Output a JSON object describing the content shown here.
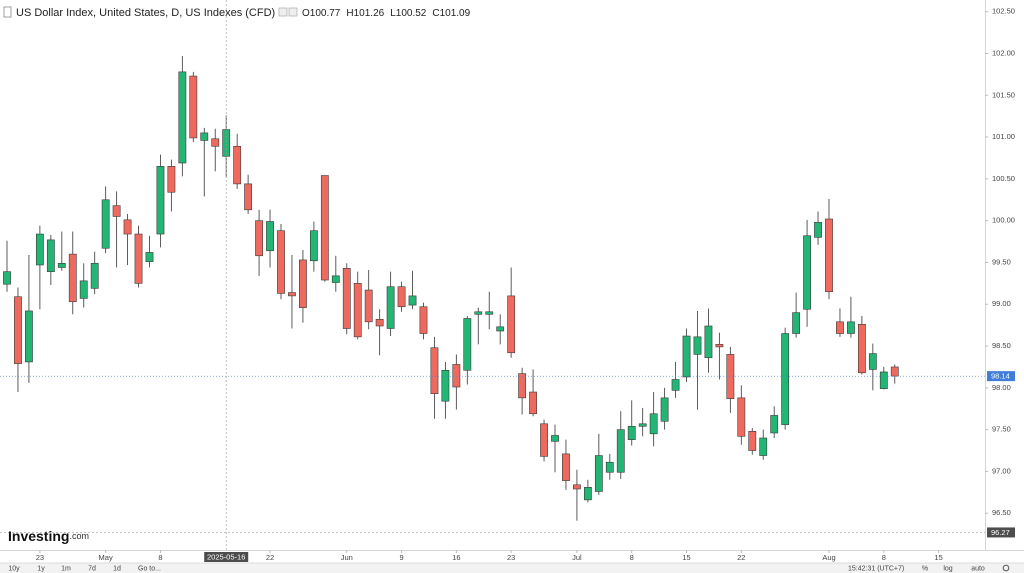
{
  "chart_data": {
    "type": "candlestick",
    "title": "US Dollar Index, United States, D, US Indexes (CFD)",
    "ohlc_labels": [
      "O",
      "H",
      "L",
      "C"
    ],
    "x": [
      "2025-04-18",
      "2025-04-21",
      "2025-04-22",
      "2025-04-23",
      "2025-04-24",
      "2025-04-25",
      "2025-04-28",
      "2025-04-29",
      "2025-04-30",
      "2025-05-01",
      "2025-05-02",
      "2025-05-05",
      "2025-05-06",
      "2025-05-07",
      "2025-05-08",
      "2025-05-09",
      "2025-05-12",
      "2025-05-13",
      "2025-05-14",
      "2025-05-15",
      "2025-05-16",
      "2025-05-19",
      "2025-05-20",
      "2025-05-21",
      "2025-05-22",
      "2025-05-23",
      "2025-05-26",
      "2025-05-27",
      "2025-05-28",
      "2025-05-29",
      "2025-05-30",
      "2025-06-02",
      "2025-06-03",
      "2025-06-04",
      "2025-06-05",
      "2025-06-06",
      "2025-06-09",
      "2025-06-10",
      "2025-06-11",
      "2025-06-12",
      "2025-06-13",
      "2025-06-16",
      "2025-06-17",
      "2025-06-18",
      "2025-06-19",
      "2025-06-20",
      "2025-06-23",
      "2025-06-24",
      "2025-06-25",
      "2025-06-26",
      "2025-06-27",
      "2025-06-30",
      "2025-07-01",
      "2025-07-02",
      "2025-07-03",
      "2025-07-04",
      "2025-07-07",
      "2025-07-08",
      "2025-07-09",
      "2025-07-10",
      "2025-07-11",
      "2025-07-14",
      "2025-07-15",
      "2025-07-16",
      "2025-07-17",
      "2025-07-18",
      "2025-07-21",
      "2025-07-22",
      "2025-07-23",
      "2025-07-24",
      "2025-07-25",
      "2025-07-28",
      "2025-07-29",
      "2025-07-30",
      "2025-07-31",
      "2025-08-01",
      "2025-08-04",
      "2025-08-05",
      "2025-08-06",
      "2025-08-07",
      "2025-08-08",
      "2025-08-11"
    ],
    "open": [
      99.24,
      99.09,
      98.31,
      99.47,
      99.39,
      99.44,
      99.6,
      99.07,
      99.19,
      99.67,
      100.18,
      100.01,
      99.84,
      99.51,
      99.84,
      100.65,
      100.69,
      101.73,
      100.96,
      100.98,
      100.77,
      100.89,
      100.44,
      100.0,
      99.64,
      99.88,
      99.14,
      99.53,
      99.52,
      100.54,
      99.26,
      99.43,
      99.25,
      99.17,
      98.82,
      98.71,
      99.21,
      98.99,
      98.97,
      98.48,
      97.84,
      98.28,
      98.21,
      98.88,
      98.88,
      98.68,
      99.1,
      98.17,
      97.95,
      97.57,
      97.36,
      97.21,
      96.84,
      96.66,
      96.76,
      96.99,
      96.99,
      97.38,
      97.54,
      97.45,
      97.6,
      97.97,
      98.13,
      98.4,
      98.36,
      98.52,
      98.4,
      97.88,
      97.48,
      97.19,
      97.46,
      97.56,
      98.65,
      98.94,
      99.8,
      100.02,
      98.79,
      98.65,
      98.76,
      98.22,
      97.99,
      98.25
    ],
    "high": [
      99.76,
      99.2,
      99.59,
      99.94,
      99.83,
      99.87,
      99.87,
      99.49,
      99.63,
      100.41,
      100.35,
      100.08,
      99.94,
      99.82,
      100.79,
      100.73,
      101.97,
      101.78,
      101.11,
      101.1,
      101.26,
      101.04,
      100.55,
      100.13,
      100.13,
      99.96,
      99.59,
      99.65,
      99.99,
      100.54,
      99.58,
      99.49,
      99.39,
      99.41,
      98.94,
      99.39,
      99.27,
      99.4,
      99.02,
      98.61,
      98.31,
      98.4,
      98.86,
      98.96,
      99.15,
      98.88,
      99.44,
      98.24,
      98.22,
      97.62,
      97.56,
      97.38,
      97.02,
      96.9,
      97.45,
      97.21,
      97.72,
      97.85,
      97.76,
      97.95,
      98.0,
      98.31,
      98.71,
      98.92,
      98.95,
      98.66,
      98.49,
      98.03,
      97.52,
      97.5,
      97.78,
      98.72,
      99.14,
      100.01,
      100.11,
      100.26,
      98.95,
      99.09,
      98.86,
      98.53,
      98.25,
      98.28
    ],
    "low": [
      99.15,
      97.95,
      98.06,
      98.94,
      99.23,
      99.4,
      98.88,
      98.96,
      99.12,
      99.61,
      99.44,
      99.47,
      99.2,
      99.44,
      99.68,
      100.11,
      100.53,
      100.94,
      100.29,
      100.59,
      100.52,
      100.38,
      100.08,
      99.34,
      99.44,
      99.06,
      98.71,
      98.78,
      99.39,
      99.27,
      99.15,
      98.64,
      98.58,
      98.7,
      98.39,
      98.62,
      98.91,
      98.94,
      98.58,
      97.63,
      97.63,
      97.74,
      98.04,
      98.52,
      98.7,
      98.52,
      98.36,
      97.68,
      97.66,
      97.12,
      96.99,
      96.78,
      96.41,
      96.63,
      96.72,
      96.9,
      96.91,
      97.31,
      97.42,
      97.3,
      97.5,
      97.88,
      98.07,
      97.74,
      98.18,
      98.1,
      97.7,
      97.32,
      97.2,
      97.14,
      97.4,
      97.5,
      98.6,
      98.73,
      99.71,
      99.06,
      98.61,
      98.6,
      98.16,
      97.97,
      97.98,
      98.05
    ],
    "close": [
      99.39,
      98.29,
      98.92,
      99.84,
      99.77,
      99.49,
      99.03,
      99.28,
      99.49,
      100.25,
      100.05,
      99.84,
      99.25,
      99.62,
      100.65,
      100.34,
      101.78,
      100.99,
      101.05,
      100.89,
      101.09,
      100.44,
      100.13,
      99.58,
      99.99,
      99.13,
      99.1,
      98.96,
      99.88,
      99.29,
      99.34,
      98.71,
      98.61,
      98.79,
      98.74,
      99.21,
      98.97,
      99.1,
      98.65,
      97.93,
      98.21,
      98.01,
      98.83,
      98.91,
      98.91,
      98.73,
      98.42,
      97.88,
      97.69,
      97.18,
      97.43,
      96.89,
      96.79,
      96.81,
      97.19,
      97.11,
      97.5,
      97.54,
      97.57,
      97.69,
      97.88,
      98.1,
      98.62,
      98.61,
      98.74,
      98.49,
      97.87,
      97.42,
      97.25,
      97.4,
      97.67,
      98.65,
      98.9,
      99.82,
      99.98,
      99.15,
      98.65,
      98.79,
      98.18,
      98.41,
      98.19,
      98.14
    ],
    "up_color": "#22b573",
    "down_color": "#ef6a5e",
    "last_price_color": "#3f7fd9",
    "header_index": 20,
    "ylim": [
      96.06,
      102.64
    ],
    "yticks": [
      {
        "value": 96.5,
        "label": "96.50"
      },
      {
        "value": 97,
        "label": "97.00"
      },
      {
        "value": 97.5,
        "label": "97.50"
      },
      {
        "value": 98,
        "label": "98.00"
      },
      {
        "value": 98.5,
        "label": "98.50"
      },
      {
        "value": 99,
        "label": "99.00"
      },
      {
        "value": 99.5,
        "label": "99.50"
      },
      {
        "value": 100,
        "label": "100.00"
      },
      {
        "value": 100.5,
        "label": "100.50"
      },
      {
        "value": 101,
        "label": "101.00"
      },
      {
        "value": 101.5,
        "label": "101.50"
      },
      {
        "value": 102,
        "label": "102.00"
      },
      {
        "value": 102.5,
        "label": "102.50"
      }
    ],
    "xticks": [
      {
        "value": "2025-04-23",
        "label": "23"
      },
      {
        "value": "2025-05-01",
        "label": "May"
      },
      {
        "value": "2025-05-08",
        "label": "8"
      },
      {
        "value": "2025-05-22",
        "label": "22"
      },
      {
        "value": "2025-06-02",
        "label": "Jun"
      },
      {
        "value": "2025-06-09",
        "label": "9"
      },
      {
        "value": "2025-06-16",
        "label": "16"
      },
      {
        "value": "2025-06-23",
        "label": "23"
      },
      {
        "value": "2025-07-01",
        "label": "Jul"
      },
      {
        "value": "2025-07-08",
        "label": "8"
      },
      {
        "value": "2025-07-15",
        "label": "15"
      },
      {
        "value": "2025-07-22",
        "label": "22"
      },
      {
        "value": "2025-08-01",
        "label": "Aug"
      },
      {
        "value": "2025-08-08",
        "label": "8"
      },
      {
        "value": "2025-08-15",
        "label": "15"
      }
    ],
    "crosshair": {
      "x": "2025-05-16",
      "y": 96.27
    },
    "grid": false
  },
  "logo": {
    "brand": "Investing",
    "suffix": ".com"
  },
  "toolbar": {
    "ranges": [
      "10y",
      "1y",
      "1m",
      "7d",
      "1d"
    ],
    "goto": "Go to...",
    "time": "15:42:31 (UTC+7)",
    "options": [
      "%",
      "log",
      "auto"
    ]
  }
}
